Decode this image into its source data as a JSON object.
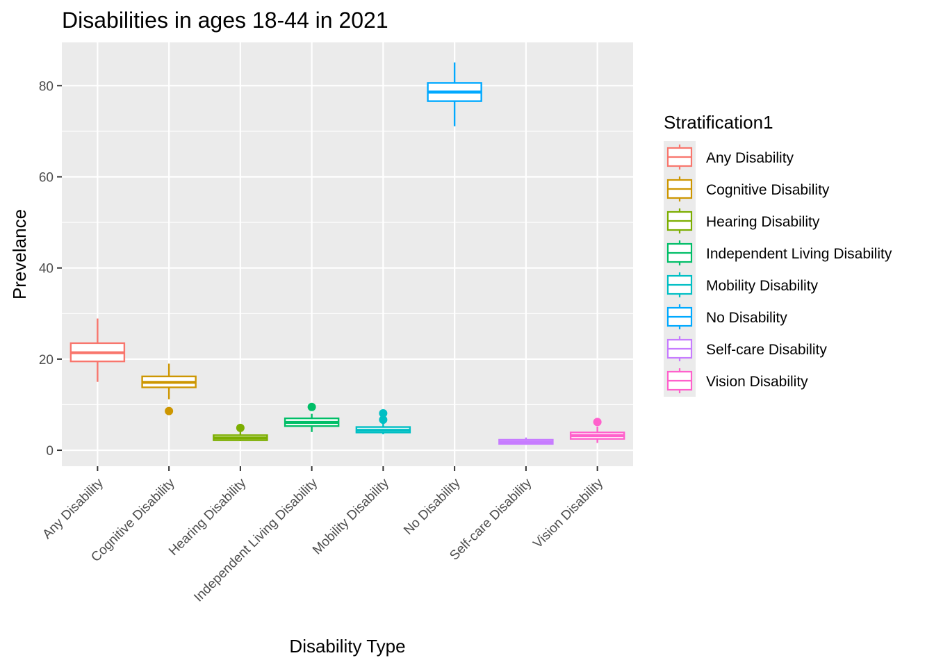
{
  "chart_data": {
    "type": "boxplot",
    "title": "Disabilities in ages 18-44 in 2021",
    "xlabel": "Disability Type",
    "ylabel": "Prevelance",
    "ylim": [
      -3.5,
      89.5
    ],
    "yticks": [
      0,
      20,
      40,
      60,
      80
    ],
    "grid": true,
    "legend_title": "Stratification1",
    "legend_position": "right",
    "categories": [
      {
        "name": "Any Disability",
        "color": "#F8766D",
        "min": 15.0,
        "q1": 19.5,
        "median": 21.4,
        "q3": 23.5,
        "max": 28.9,
        "outliers": []
      },
      {
        "name": "Cognitive Disability",
        "color": "#CD9600",
        "min": 11.2,
        "q1": 13.8,
        "median": 14.9,
        "q3": 16.2,
        "max": 19.0,
        "outliers": [
          8.6
        ]
      },
      {
        "name": "Hearing Disability",
        "color": "#7CAE00",
        "min": 2.0,
        "q1": 2.2,
        "median": 2.7,
        "q3": 3.3,
        "max": 4.2,
        "outliers": [
          4.9
        ]
      },
      {
        "name": "Independent Living Disability",
        "color": "#00BE67",
        "min": 4.0,
        "q1": 5.3,
        "median": 6.1,
        "q3": 7.0,
        "max": 8.0,
        "outliers": [
          9.5
        ]
      },
      {
        "name": "Mobility Disability",
        "color": "#00BFC4",
        "min": 3.5,
        "q1": 3.9,
        "median": 4.4,
        "q3": 5.1,
        "max": 6.0,
        "outliers": [
          6.7,
          8.1
        ]
      },
      {
        "name": "No Disability",
        "color": "#00A9FF",
        "min": 71.1,
        "q1": 76.6,
        "median": 78.6,
        "q3": 80.6,
        "max": 85.1,
        "outliers": []
      },
      {
        "name": "Self-care Disability",
        "color": "#C77CFF",
        "min": 1.2,
        "q1": 1.4,
        "median": 1.8,
        "q3": 2.3,
        "max": 2.8,
        "outliers": []
      },
      {
        "name": "Vision Disability",
        "color": "#FF61CC",
        "min": 1.6,
        "q1": 2.5,
        "median": 3.2,
        "q3": 3.9,
        "max": 5.2,
        "outliers": [
          6.2
        ]
      }
    ]
  }
}
